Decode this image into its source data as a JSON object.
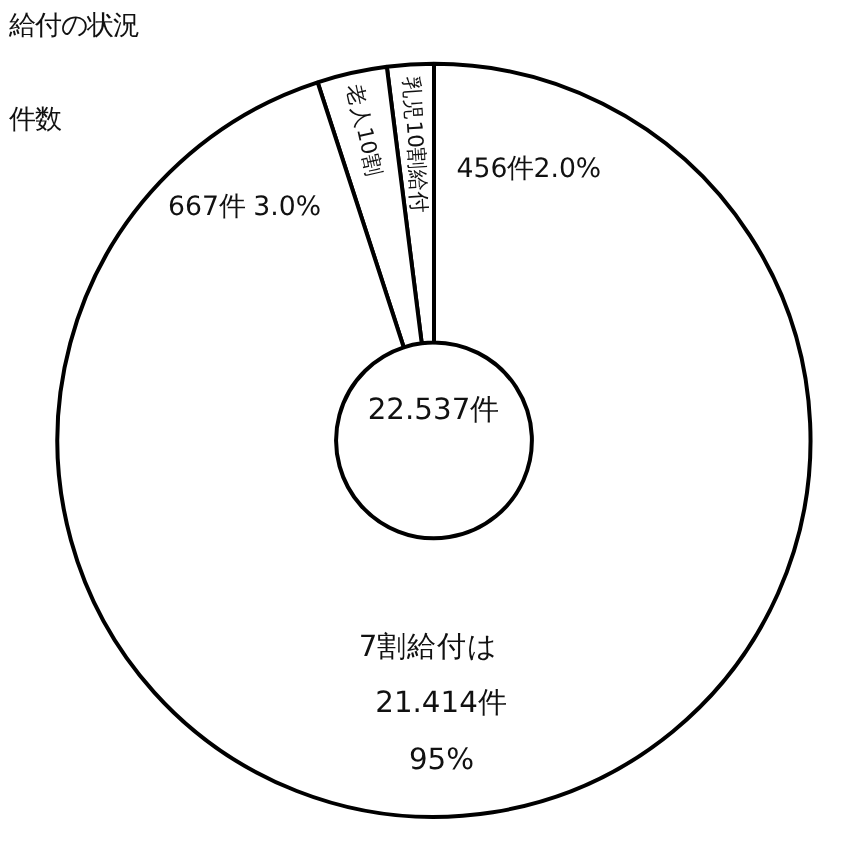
{
  "chart_data": {
    "type": "donut",
    "title": "給付の状況",
    "subtitle": "件数",
    "annotations": [
      "22.537件"
    ],
    "categories": [
      "乳児10割給付",
      "老人10割",
      "7割給付は"
    ],
    "values": [
      2.0,
      3.0,
      95
    ],
    "value_labels": [
      "456件2.0%",
      "667件 3.0%",
      "21.414件\n95%"
    ],
    "colors": [
      "#ffffff",
      "#ffffff",
      "#ffffff"
    ]
  }
}
